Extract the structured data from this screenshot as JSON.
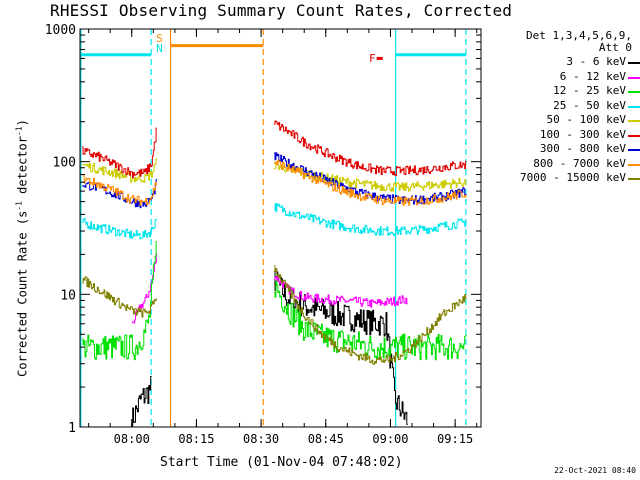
{
  "chart_data": {
    "type": "line",
    "title": "RHESSI Observing Summary Count Rates, Corrected",
    "xlabel": "Start Time (01-Nov-04 07:48:02)",
    "ylabel_main": "Corrected Count Rate (s",
    "ylabel_sup1": "-1",
    "ylabel_mid": " detector",
    "ylabel_sup2": "-1",
    "ylabel_end": ")",
    "y_scale": "log",
    "ylim": [
      1,
      1000
    ],
    "xlim_minutes": [
      0,
      93
    ],
    "x_ticks": [
      {
        "t": 12,
        "label": "08:00"
      },
      {
        "t": 27,
        "label": "08:15"
      },
      {
        "t": 42,
        "label": "08:30"
      },
      {
        "t": 57,
        "label": "08:45"
      },
      {
        "t": 72,
        "label": "09:00"
      },
      {
        "t": 87,
        "label": "09:15"
      }
    ],
    "y_ticks": [
      {
        "v": 1,
        "label": "1"
      },
      {
        "v": 10,
        "label": "10"
      },
      {
        "v": 100,
        "label": "100"
      },
      {
        "v": 1000,
        "label": "1000"
      }
    ],
    "legend_header": [
      "Det 1,3,4,5,6,9,",
      "Att 0"
    ],
    "legend_position": "right",
    "footer": "22-Oct-2021 08:40",
    "flags": [
      {
        "label": "S",
        "t": 17.5,
        "color": "#ff8c00"
      },
      {
        "label": "N",
        "t": 17.5,
        "color": "#00e5ee"
      },
      {
        "label": "F",
        "t": 68.5,
        "color": "#e00000"
      }
    ],
    "vlines": [
      {
        "t": 0.2,
        "color": "#00e5ee",
        "style": "solid"
      },
      {
        "t": 16.5,
        "color": "#00e5ee",
        "style": "dashed"
      },
      {
        "t": 21.0,
        "color": "#ff8c00",
        "style": "solid"
      },
      {
        "t": 42.5,
        "color": "#ff8c00",
        "style": "dashed"
      },
      {
        "t": 73.2,
        "color": "#00e5ee",
        "style": "solid"
      },
      {
        "t": 89.5,
        "color": "#00e5ee",
        "style": "dashed"
      }
    ],
    "bars": [
      {
        "t0": 0.2,
        "t1": 16.5,
        "v": 640,
        "color": "#00e5ee"
      },
      {
        "t0": 21.0,
        "t1": 42.5,
        "v": 750,
        "color": "#ff8c00"
      },
      {
        "t0": 73.2,
        "t1": 89.5,
        "v": 640,
        "color": "#00e5ee"
      },
      {
        "t0": 68.8,
        "t1": 70.2,
        "v": 600,
        "color": "#e00000"
      }
    ],
    "series": [
      {
        "name": "3 - 6 keV",
        "color": "#000000",
        "segA": [
          [
            12,
            1.1
          ],
          [
            14,
            1.6
          ],
          [
            15.5,
            1.8
          ],
          [
            16.5,
            2.0
          ]
        ],
        "segB": [
          [
            45,
            13
          ],
          [
            48,
            9.5
          ],
          [
            52,
            8.2
          ],
          [
            56,
            7.5
          ],
          [
            60,
            7.0
          ],
          [
            64,
            6.5
          ],
          [
            68,
            6.1
          ],
          [
            71,
            6.0
          ],
          [
            73,
            1.6
          ],
          [
            76,
            1.1
          ]
        ]
      },
      {
        "name": "6 - 12 keV",
        "color": "#ff00ff",
        "segA": [
          [
            12,
            6.0
          ],
          [
            14,
            8.0
          ],
          [
            15.5,
            9.5
          ],
          [
            16.5,
            12
          ],
          [
            17.8,
            20
          ]
        ],
        "segB": [
          [
            45,
            14
          ],
          [
            48,
            11
          ],
          [
            52,
            9.5
          ],
          [
            56,
            9.2
          ],
          [
            60,
            9.0
          ],
          [
            64,
            8.8
          ],
          [
            68,
            8.5
          ],
          [
            72,
            8.8
          ],
          [
            76,
            9.2
          ]
        ]
      },
      {
        "name": "12 - 25 keV",
        "color": "#00e000",
        "segA": [
          [
            0.5,
            4.0
          ],
          [
            12,
            4.0
          ],
          [
            13,
            4.0
          ],
          [
            14,
            4.6
          ],
          [
            15,
            5.2
          ],
          [
            16,
            6.5
          ],
          [
            17.8,
            24
          ]
        ],
        "segB": [
          [
            45,
            12
          ],
          [
            48,
            8.0
          ],
          [
            52,
            5.5
          ],
          [
            56,
            4.8
          ],
          [
            60,
            4.5
          ],
          [
            64,
            4.3
          ],
          [
            68,
            4.0
          ],
          [
            72,
            4.0
          ],
          [
            76,
            4.0
          ],
          [
            80,
            4.0
          ],
          [
            85,
            4.0
          ],
          [
            89.5,
            4.0
          ]
        ]
      },
      {
        "name": "25 - 50 keV",
        "color": "#00e5ee",
        "segA": [
          [
            0.5,
            35
          ],
          [
            4,
            32
          ],
          [
            8,
            30
          ],
          [
            12,
            28
          ],
          [
            15,
            28
          ],
          [
            16.5,
            30
          ],
          [
            17.8,
            38
          ]
        ],
        "segB": [
          [
            45,
            46
          ],
          [
            50,
            40
          ],
          [
            55,
            36
          ],
          [
            60,
            33
          ],
          [
            65,
            31
          ],
          [
            70,
            30
          ],
          [
            75,
            30
          ],
          [
            80,
            31
          ],
          [
            85,
            33
          ],
          [
            89.5,
            35
          ]
        ]
      },
      {
        "name": "50 - 100 keV",
        "color": "#cccc00",
        "segA": [
          [
            0.5,
            95
          ],
          [
            4,
            88
          ],
          [
            8,
            82
          ],
          [
            12,
            75
          ],
          [
            15,
            75
          ],
          [
            16.5,
            80
          ],
          [
            17.8,
            100
          ]
        ],
        "segB": [
          [
            45,
            95
          ],
          [
            50,
            85
          ],
          [
            55,
            78
          ],
          [
            60,
            72
          ],
          [
            65,
            68
          ],
          [
            70,
            65
          ],
          [
            75,
            64
          ],
          [
            80,
            66
          ],
          [
            85,
            68
          ],
          [
            89.5,
            70
          ]
        ]
      },
      {
        "name": "100 - 300 keV",
        "color": "#e00000",
        "segA": [
          [
            0.5,
            120
          ],
          [
            4,
            110
          ],
          [
            8,
            95
          ],
          [
            12,
            82
          ],
          [
            15,
            82
          ],
          [
            16.5,
            95
          ],
          [
            17.8,
            180
          ]
        ],
        "segB": [
          [
            45,
            195
          ],
          [
            48,
            170
          ],
          [
            52,
            140
          ],
          [
            56,
            120
          ],
          [
            60,
            105
          ],
          [
            65,
            92
          ],
          [
            70,
            85
          ],
          [
            75,
            85
          ],
          [
            80,
            87
          ],
          [
            85,
            92
          ],
          [
            89.5,
            95
          ]
        ]
      },
      {
        "name": "300 - 800 keV",
        "color": "#0000d0",
        "segA": [
          [
            0.5,
            68
          ],
          [
            4,
            64
          ],
          [
            8,
            57
          ],
          [
            12,
            50
          ],
          [
            15,
            48
          ],
          [
            16.5,
            52
          ],
          [
            17.8,
            70
          ]
        ],
        "segB": [
          [
            45,
            110
          ],
          [
            48,
            98
          ],
          [
            52,
            86
          ],
          [
            56,
            75
          ],
          [
            60,
            66
          ],
          [
            65,
            58
          ],
          [
            70,
            53
          ],
          [
            75,
            51
          ],
          [
            80,
            52
          ],
          [
            85,
            55
          ],
          [
            89.5,
            60
          ]
        ]
      },
      {
        "name": "800 - 7000 keV",
        "color": "#ff8c00",
        "segA": [
          [
            0.5,
            75
          ],
          [
            4,
            68
          ],
          [
            8,
            60
          ],
          [
            12,
            52
          ],
          [
            15,
            50
          ],
          [
            16.5,
            54
          ],
          [
            17.8,
            72
          ]
        ],
        "segB": [
          [
            45,
            100
          ],
          [
            48,
            90
          ],
          [
            52,
            80
          ],
          [
            56,
            70
          ],
          [
            60,
            62
          ],
          [
            65,
            55
          ],
          [
            70,
            51
          ],
          [
            75,
            50
          ],
          [
            80,
            51
          ],
          [
            85,
            54
          ],
          [
            89.5,
            58
          ]
        ]
      },
      {
        "name": "7000 - 15000 keV",
        "color": "#808000",
        "segA": [
          [
            0.5,
            13
          ],
          [
            4,
            11
          ],
          [
            8,
            9
          ],
          [
            12,
            7.5
          ],
          [
            15,
            7.2
          ],
          [
            16.5,
            7.8
          ],
          [
            17.8,
            10
          ]
        ],
        "segB": [
          [
            45,
            16
          ],
          [
            48,
            11
          ],
          [
            52,
            7.0
          ],
          [
            56,
            5.0
          ],
          [
            60,
            4.0
          ],
          [
            64,
            3.5
          ],
          [
            68,
            3.2
          ],
          [
            72,
            3.2
          ],
          [
            76,
            3.8
          ],
          [
            80,
            5.0
          ],
          [
            84,
            7.0
          ],
          [
            89.5,
            9.5
          ]
        ]
      }
    ]
  }
}
